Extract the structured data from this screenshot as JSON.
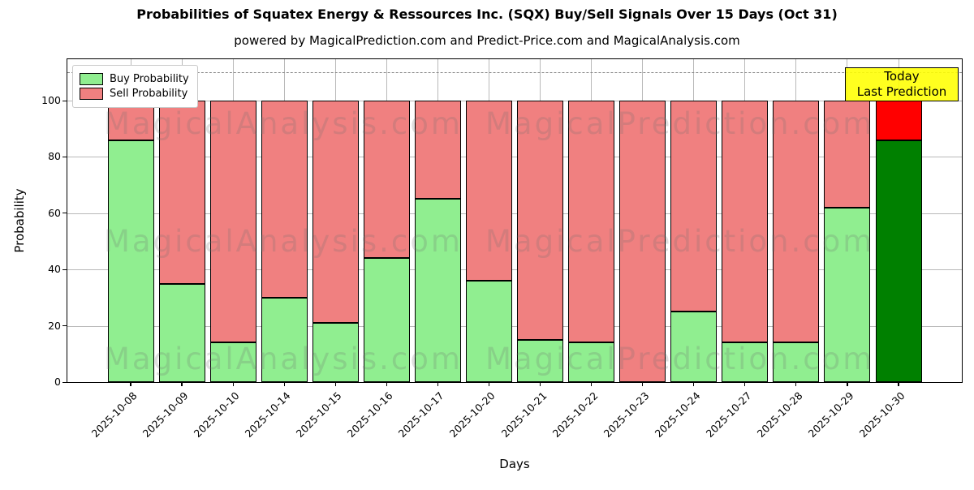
{
  "title": "Probabilities of Squatex Energy & Ressources Inc. (SQX) Buy/Sell Signals Over 15 Days (Oct 31)",
  "subtitle": "powered by MagicalPrediction.com and Predict-Price.com and MagicalAnalysis.com",
  "legend": [
    {
      "label": "Buy Probability",
      "color": "#90ee90"
    },
    {
      "label": "Sell Probability",
      "color": "#f08080"
    }
  ],
  "annotation": {
    "lines": [
      "Today",
      "Last Prediction"
    ],
    "bg": "#ffff00"
  },
  "watermarks": {
    "left": "MagicalAnalysis.com",
    "right": "MagicalPrediction.com"
  },
  "colors": {
    "buy": "#90ee90",
    "sell": "#f08080",
    "today_buy": "#008000",
    "today_sell": "#ff0000",
    "grid": "#b9b9b9",
    "dashed_line": "#8a8a8a",
    "annotation_bg": "#ffff00"
  },
  "chart_data": {
    "type": "bar",
    "stacked": true,
    "title": "Probabilities of Squatex Energy & Ressources Inc. (SQX) Buy/Sell Signals Over 15 Days (Oct 31)",
    "xlabel": "Days",
    "ylabel": "Probability",
    "categories": [
      "2025-10-08",
      "2025-10-09",
      "2025-10-10",
      "2025-10-14",
      "2025-10-15",
      "2025-10-16",
      "2025-10-17",
      "2025-10-20",
      "2025-10-21",
      "2025-10-22",
      "2025-10-23",
      "2025-10-24",
      "2025-10-27",
      "2025-10-28",
      "2025-10-29",
      "2025-10-30"
    ],
    "series": [
      {
        "name": "Buy Probability",
        "color": "#90ee90",
        "values": [
          86,
          35,
          14,
          30,
          21,
          44,
          65,
          36,
          15,
          14,
          0,
          25,
          14,
          14,
          62,
          86
        ]
      },
      {
        "name": "Sell Probability",
        "color": "#f08080",
        "values": [
          14,
          65,
          86,
          70,
          79,
          56,
          35,
          64,
          85,
          86,
          100,
          75,
          86,
          86,
          38,
          14
        ]
      }
    ],
    "today_index": 15,
    "today_colors": {
      "buy": "#008000",
      "sell": "#ff0000"
    },
    "yticks": [
      0,
      20,
      40,
      60,
      80,
      100
    ],
    "ylim": [
      0,
      114.7
    ],
    "dashed_line_y": 110,
    "grid": true,
    "legend_position": "upper left"
  }
}
